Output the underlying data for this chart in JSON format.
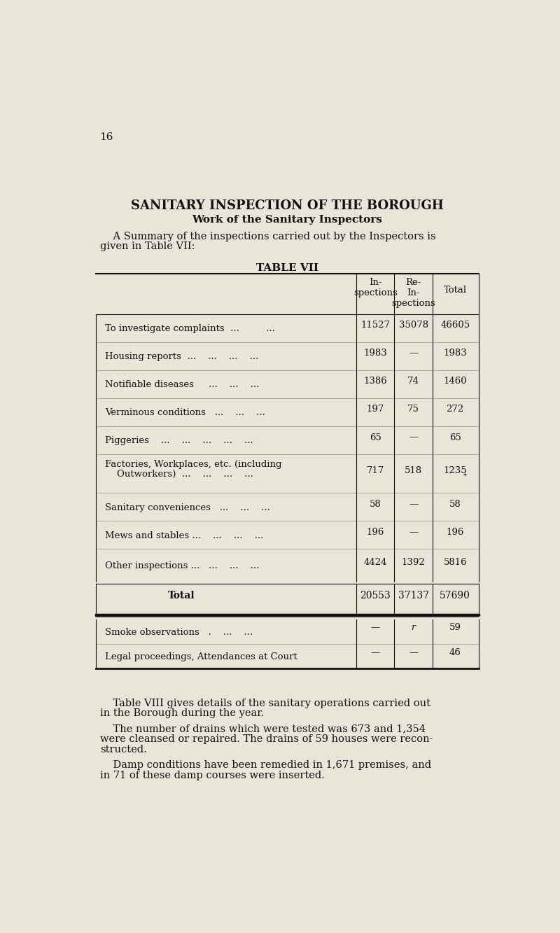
{
  "page_number": "16",
  "bg_color": "#e9e5d9",
  "title": "SANITARY INSPECTION OF THE BOROUGH",
  "subtitle": "Work of the Sanitary Inspectors",
  "intro_text1": "    A Summary of the inspections carried out by the Inspectors is",
  "intro_text2": "given in Table VII:",
  "table_title": "TABLE VII",
  "col_headers": [
    "In-\nspections",
    "Re-\nIn-\nspections",
    "Total"
  ],
  "rows": [
    {
      "label": "To investigate complaints  ...         ...",
      "vals": [
        "11527",
        "35078",
        "46605"
      ],
      "twolines": false
    },
    {
      "label": "Housing reports  ...    ...    ...    ...",
      "vals": [
        "1983",
        "—",
        "1983"
      ],
      "twolines": false
    },
    {
      "label": "Notifiable diseases     ...    ...    ...",
      "vals": [
        "1386",
        "74",
        "1460"
      ],
      "twolines": false
    },
    {
      "label": "Verminous conditions   ...    ...    ...",
      "vals": [
        "197",
        "75",
        "272"
      ],
      "twolines": false
    },
    {
      "label": "Piggeries    ...    ...    ...    ...    ...",
      "vals": [
        "65",
        "—",
        "65"
      ],
      "twolines": false
    },
    {
      "label": "Factories, Workplaces, etc. (including",
      "label2": "    Outworkers)  ...    ...    ...    ...",
      "vals": [
        "717",
        "518",
        "1235"
      ],
      "twolines": true
    },
    {
      "label": "Sanitary conveniences   ...    ...    ...",
      "vals": [
        "58",
        "—",
        "58"
      ],
      "twolines": false
    },
    {
      "label": "Mews and stables ...    ...    ...    ...",
      "vals": [
        "196",
        "—",
        "196"
      ],
      "twolines": false
    },
    {
      "label": "Other inspections ...   ...    ...    ...",
      "vals": [
        "4424",
        "1392",
        "5816"
      ],
      "twolines": false
    }
  ],
  "total_label": "Total",
  "total_vals": [
    "20553",
    "37137",
    "57690"
  ],
  "extra_rows": [
    {
      "label": "Smoke observations   .    ...    ...",
      "vals": [
        "—",
        "r",
        "59"
      ]
    },
    {
      "label": "Legal proceedings, Attendances at Court",
      "vals": [
        "—",
        "—",
        "46"
      ]
    }
  ],
  "para1_indent": "    Table VIII gives details of the sanitary operations carried out",
  "para1_cont": "in the Borough during the year.",
  "para2_indent": "    The number of drains which were tested was 673 and 1,354",
  "para2_cont1": "were cleansed or repaired. The drains of 59 houses were recon-",
  "para2_cont2": "structed.",
  "para3_indent": "    Damp conditions have been remedied in 1,671 premises, and",
  "para3_cont": "in 71 of these damp courses were inserted.",
  "text_color": "#111111",
  "line_color": "#111111",
  "ghost_color": "#b8c4d4"
}
